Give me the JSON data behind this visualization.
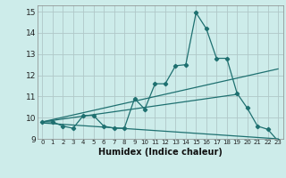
{
  "xlabel": "Humidex (Indice chaleur)",
  "xlim": [
    -0.5,
    23.5
  ],
  "ylim": [
    9.0,
    15.3
  ],
  "yticks": [
    9,
    10,
    11,
    12,
    13,
    14,
    15
  ],
  "xticks": [
    0,
    1,
    2,
    3,
    4,
    5,
    6,
    7,
    8,
    9,
    10,
    11,
    12,
    13,
    14,
    15,
    16,
    17,
    18,
    19,
    20,
    21,
    22,
    23
  ],
  "background_color": "#cdecea",
  "grid_color": "#b0c8c8",
  "line_color": "#1e7070",
  "line1_x": [
    0,
    1,
    2,
    3,
    4,
    5,
    6,
    7,
    8,
    9,
    10,
    11,
    12,
    13,
    14,
    15,
    16,
    17,
    18,
    19,
    20,
    21,
    22,
    23
  ],
  "line1_y": [
    9.8,
    9.8,
    9.6,
    9.5,
    10.1,
    10.1,
    9.6,
    9.5,
    9.5,
    10.9,
    10.4,
    11.6,
    11.6,
    12.45,
    12.5,
    14.95,
    14.2,
    12.8,
    12.8,
    11.15,
    10.45,
    9.6,
    9.45,
    8.9
  ],
  "line2_x": [
    0,
    23
  ],
  "line2_y": [
    9.8,
    12.3
  ],
  "line3_x": [
    0,
    19
  ],
  "line3_y": [
    9.8,
    11.1
  ],
  "line4_x": [
    0,
    23
  ],
  "line4_y": [
    9.75,
    9.0
  ]
}
